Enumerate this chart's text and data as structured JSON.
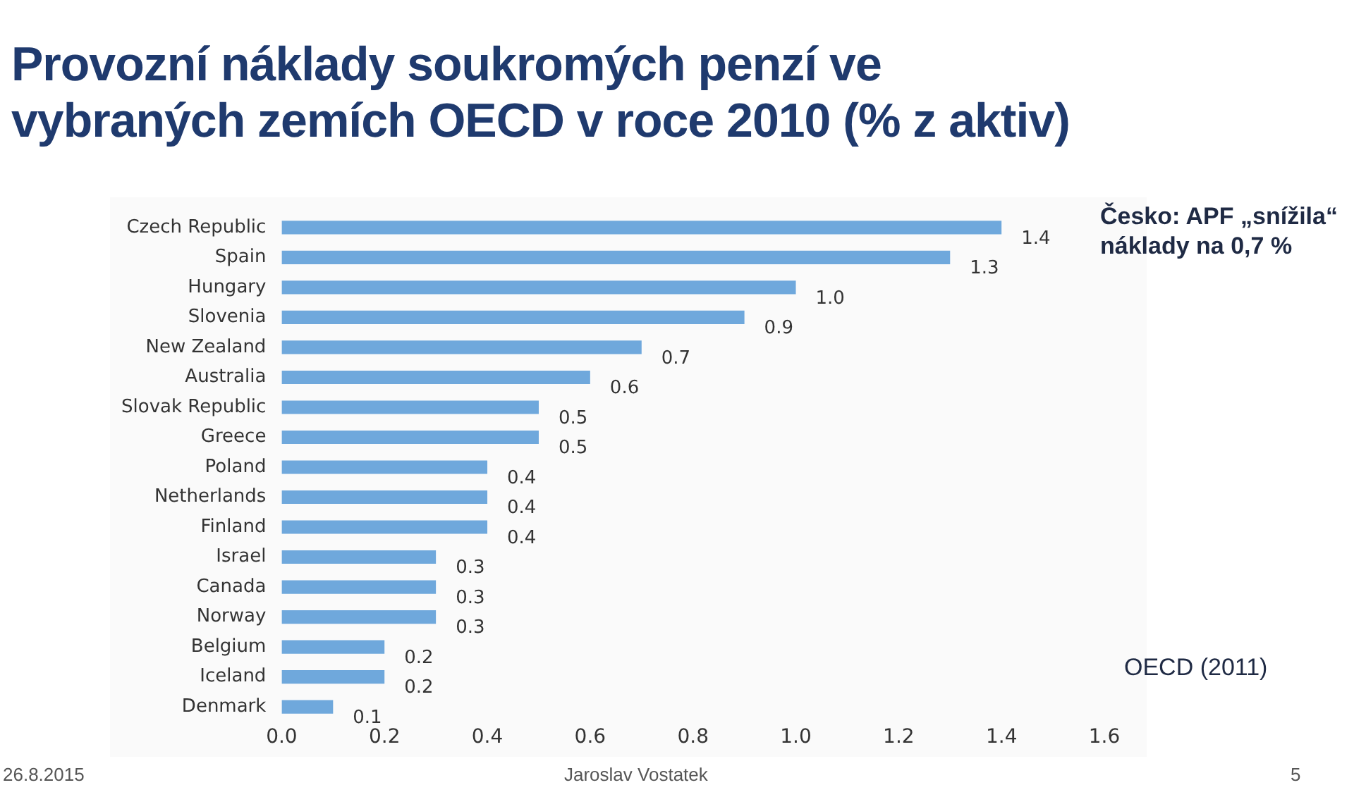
{
  "chart_data": {
    "type": "bar",
    "orientation": "horizontal",
    "title": "Provozní náklady soukromých penzí ve vybraných zemích OECD v roce 2010 (% z aktiv)",
    "categories": [
      "Czech Republic",
      "Spain",
      "Hungary",
      "Slovenia",
      "New Zealand",
      "Australia",
      "Slovak Republic",
      "Greece",
      "Poland",
      "Netherlands",
      "Finland",
      "Israel",
      "Canada",
      "Norway",
      "Belgium",
      "Iceland",
      "Denmark"
    ],
    "values": [
      1.4,
      1.3,
      1.0,
      0.9,
      0.7,
      0.6,
      0.5,
      0.5,
      0.4,
      0.4,
      0.4,
      0.3,
      0.3,
      0.3,
      0.2,
      0.2,
      0.1
    ],
    "value_labels": [
      "1.4",
      "1.3",
      "1.0",
      "0.9",
      "0.7",
      "0.6",
      "0.5",
      "0.5",
      "0.4",
      "0.4",
      "0.4",
      "0.3",
      "0.3",
      "0.3",
      "0.2",
      "0.2",
      "0.1"
    ],
    "color": "#6fa8dc",
    "xlim": [
      0,
      1.6
    ],
    "xticks": [
      {
        "value": 0,
        "label": "0.0"
      },
      {
        "value": 0.2,
        "label": "0.2"
      },
      {
        "value": 0.4,
        "label": "0.4"
      },
      {
        "value": 0.6,
        "label": "0.6"
      },
      {
        "value": 0.8,
        "label": "0.8"
      },
      {
        "value": 1,
        "label": "1.0"
      },
      {
        "value": 1.2,
        "label": "1.2"
      },
      {
        "value": 1.4,
        "label": "1.4"
      },
      {
        "value": 1.6,
        "label": "1.6"
      }
    ],
    "grid": false,
    "legend": false,
    "annotations": [
      "Česko: APF „snížila“ náklady na 0,7 %",
      "OECD (2011)",
      "26.8.2015",
      "Jaroslav Vostatek",
      "5"
    ]
  }
}
